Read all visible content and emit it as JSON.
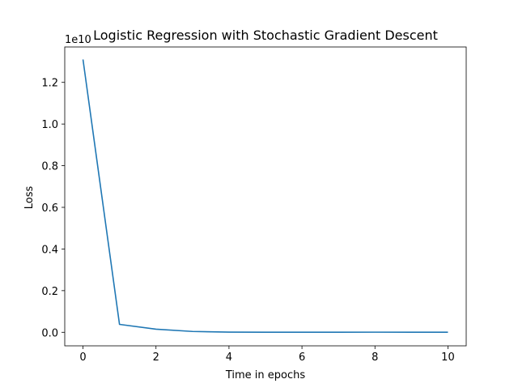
{
  "chart_data": {
    "type": "line",
    "title": "Logistic Regression with Stochastic Gradient Descent",
    "xlabel": "Time in epochs",
    "ylabel": "Loss",
    "offset_label": "1e10",
    "xlim": [
      -0.5,
      10.5
    ],
    "ylim": [
      -0.065,
      1.37
    ],
    "x_ticks": [
      0,
      2,
      4,
      6,
      8,
      10
    ],
    "x_tick_labels": [
      "0",
      "2",
      "4",
      "6",
      "8",
      "10"
    ],
    "y_ticks": [
      0.0,
      0.2,
      0.4,
      0.6,
      0.8,
      1.0,
      1.2
    ],
    "y_tick_labels": [
      "0.0",
      "0.2",
      "0.4",
      "0.6",
      "0.8",
      "1.0",
      "1.2"
    ],
    "grid": false,
    "legend": "none",
    "series": [
      {
        "color": "#1f77b4",
        "x": [
          0,
          1,
          2,
          3,
          4,
          5,
          6,
          7,
          8,
          9,
          10
        ],
        "y": [
          1.31,
          0.038,
          0.015,
          0.004,
          0.0008,
          0.0004,
          0.0003,
          0.0004,
          0.0006,
          0.0003,
          0.0002
        ]
      }
    ]
  }
}
